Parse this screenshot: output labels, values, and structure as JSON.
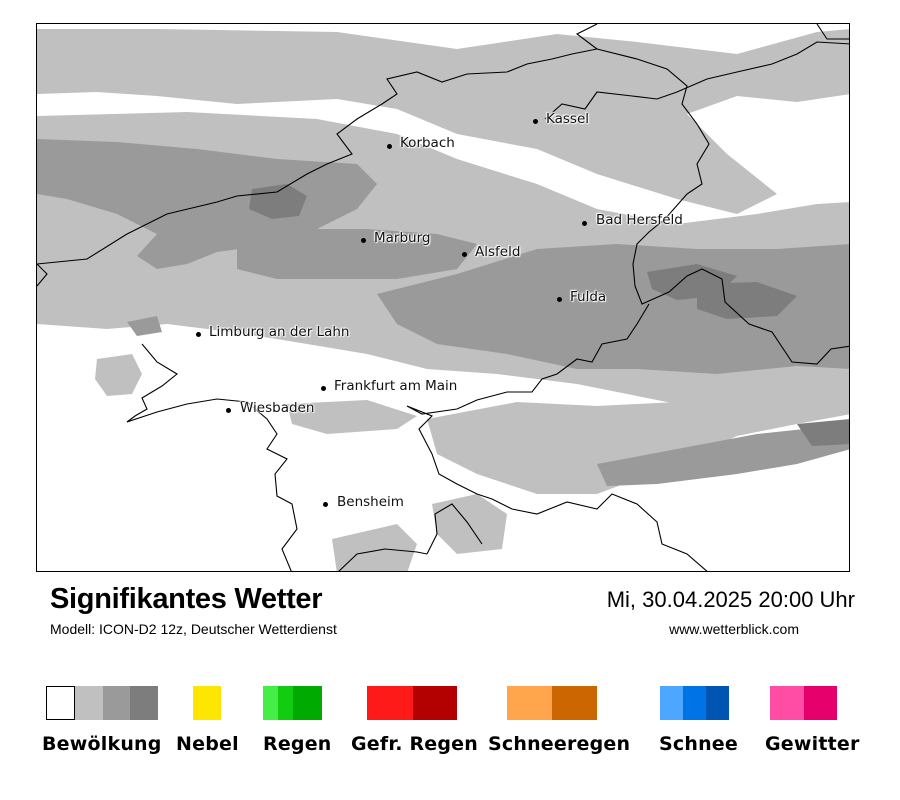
{
  "map": {
    "cities": [
      {
        "name": "Kassel"
      },
      {
        "name": "Korbach"
      },
      {
        "name": "Bad Hersfeld"
      },
      {
        "name": "Marburg"
      },
      {
        "name": "Alsfeld"
      },
      {
        "name": "Fulda"
      },
      {
        "name": "Limburg an der Lahn"
      },
      {
        "name": "Frankfurt am Main"
      },
      {
        "name": "Wiesbaden"
      },
      {
        "name": "Bensheim"
      }
    ],
    "cloud_colors": {
      "light": "#c0c0c0",
      "medium": "#9a9a9a",
      "dark": "#7d7d7d"
    }
  },
  "header": {
    "title": "Signifikantes Wetter",
    "subtitle": "Modell: ICON-D2 12z, Deutscher Wetterdienst",
    "datetime": "Mi, 30.04.2025 20:00 Uhr",
    "website": "www.wetterblick.com"
  },
  "legend": [
    {
      "label": "Bewölkung",
      "colors": [
        "#ffffff",
        "#c0c0c0",
        "#9a9a9a",
        "#7d7d7d"
      ]
    },
    {
      "label": "Nebel",
      "colors": [
        "#ffe600"
      ]
    },
    {
      "label": "Regen",
      "colors": [
        "#44ee44",
        "#11cc11",
        "#00aa00"
      ]
    },
    {
      "label": "Gefr. Regen",
      "colors": [
        "#ff1a1a",
        "#b30000"
      ]
    },
    {
      "label": "Schneeregen",
      "colors": [
        "#ffa64d",
        "#cc6600"
      ]
    },
    {
      "label": "Schnee",
      "colors": [
        "#4da6ff",
        "#0073e6",
        "#0055b3"
      ]
    },
    {
      "label": "Gewitter",
      "colors": [
        "#ff4da6",
        "#e6006b"
      ]
    }
  ]
}
